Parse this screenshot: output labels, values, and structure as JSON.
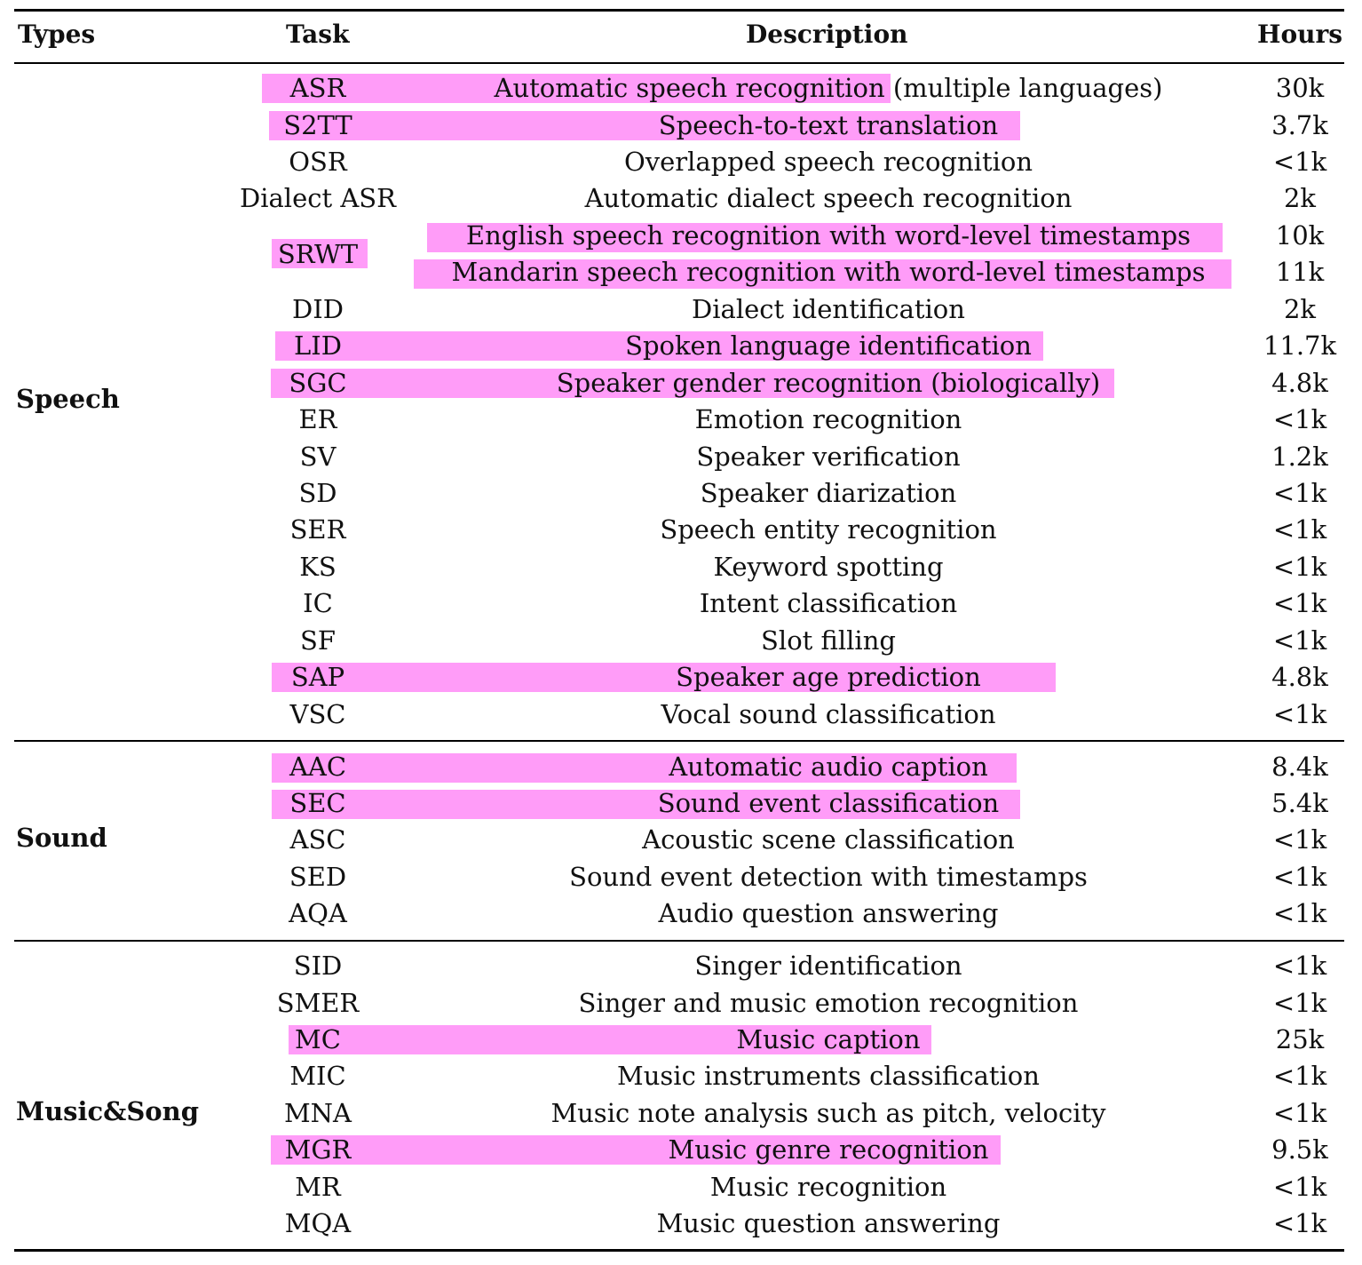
{
  "headers": {
    "types": "Types",
    "task": "Task",
    "description": "Description",
    "hours": "Hours"
  },
  "groups": {
    "speech": "Speech",
    "sound": "Sound",
    "music": "Music&Song"
  },
  "rows": [
    {
      "task": "ASR",
      "description": "Automatic speech recognition (multiple languages)",
      "hours": "30k"
    },
    {
      "task": "S2TT",
      "description": "Speech-to-text translation",
      "hours": "3.7k"
    },
    {
      "task": "OSR",
      "description": "Overlapped speech recognition",
      "hours": "<1k"
    },
    {
      "task": "Dialect ASR",
      "description": "Automatic dialect speech recognition",
      "hours": "2k"
    },
    {
      "task": "",
      "description": "English speech recognition with word-level timestamps",
      "hours": "10k"
    },
    {
      "task": "",
      "description": "Mandarin speech recognition with word-level timestamps",
      "hours": "11k"
    },
    {
      "task": "DID",
      "description": "Dialect identification",
      "hours": "2k"
    },
    {
      "task": "LID",
      "description": "Spoken language identification",
      "hours": "11.7k"
    },
    {
      "task": "SGC",
      "description": "Speaker gender recognition (biologically)",
      "hours": "4.8k"
    },
    {
      "task": "ER",
      "description": "Emotion recognition",
      "hours": "<1k"
    },
    {
      "task": "SV",
      "description": "Speaker verification",
      "hours": "1.2k"
    },
    {
      "task": "SD",
      "description": "Speaker diarization",
      "hours": "<1k"
    },
    {
      "task": "SER",
      "description": "Speech entity recognition",
      "hours": "<1k"
    },
    {
      "task": "KS",
      "description": "Keyword spotting",
      "hours": "<1k"
    },
    {
      "task": "IC",
      "description": "Intent classification",
      "hours": "<1k"
    },
    {
      "task": "SF",
      "description": "Slot filling",
      "hours": "<1k"
    },
    {
      "task": "SAP",
      "description": "Speaker age prediction",
      "hours": "4.8k"
    },
    {
      "task": "VSC",
      "description": "Vocal sound classification",
      "hours": "<1k"
    },
    {
      "task": "AAC",
      "description": "Automatic audio caption",
      "hours": "8.4k"
    },
    {
      "task": "SEC",
      "description": "Sound event classification",
      "hours": "5.4k"
    },
    {
      "task": "ASC",
      "description": "Acoustic scene classification",
      "hours": "<1k"
    },
    {
      "task": "SED",
      "description": "Sound event detection with timestamps",
      "hours": "<1k"
    },
    {
      "task": "AQA",
      "description": "Audio question answering",
      "hours": "<1k"
    },
    {
      "task": "SID",
      "description": "Singer identification",
      "hours": "<1k"
    },
    {
      "task": "SMER",
      "description": "Singer and music emotion recognition",
      "hours": "<1k"
    },
    {
      "task": "MC",
      "description": "Music caption",
      "hours": "25k"
    },
    {
      "task": "MIC",
      "description": "Music instruments classification",
      "hours": "<1k"
    },
    {
      "task": "MNA",
      "description": "Music note analysis such as pitch, velocity",
      "hours": "<1k"
    },
    {
      "task": "MGR",
      "description": "Music genre recognition",
      "hours": "9.5k"
    },
    {
      "task": "MR",
      "description": "Music recognition",
      "hours": "<1k"
    },
    {
      "task": "MQA",
      "description": "Music question answering",
      "hours": "<1k"
    }
  ],
  "srwt_task": "SRWT",
  "highlight_color": "#ff9cf8"
}
